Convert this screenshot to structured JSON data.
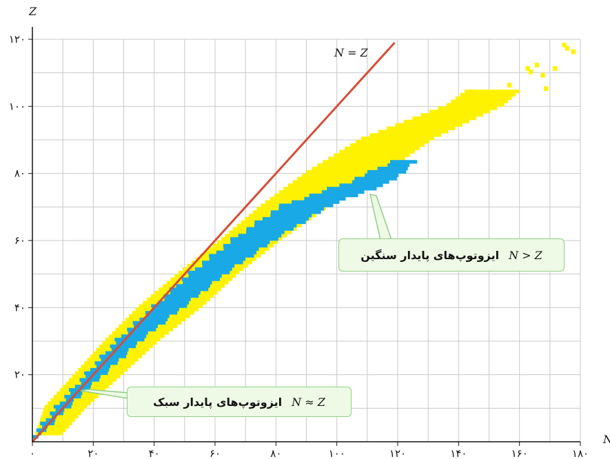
{
  "chart_data": {
    "type": "scatter",
    "title": "",
    "xlabel": "N",
    "ylabel": "Z",
    "xlim": [
      0,
      180
    ],
    "ylim": [
      0,
      120
    ],
    "x_ticks": [
      0,
      20,
      40,
      60,
      80,
      100,
      120,
      140,
      160,
      180
    ],
    "x_tick_labels": [
      "۰",
      "۲۰",
      "۴۰",
      "۶۰",
      "۸۰",
      "۱۰۰",
      "۱۲۰",
      "۱۴۰",
      "۱۶۰",
      "۱۸۰"
    ],
    "y_ticks": [
      20,
      40,
      60,
      80,
      100,
      120
    ],
    "y_tick_labels": [
      "۲۰",
      "۴۰",
      "۶۰",
      "۸۰",
      "۱۰۰",
      "۱۲۰"
    ],
    "grid": true,
    "reference_line": {
      "label": "N = Z",
      "x": [
        0,
        119
      ],
      "y": [
        0,
        119
      ],
      "color": "#d94b35"
    },
    "series": [
      {
        "color": "#fff200",
        "band": {
          "z": [
            2,
            10,
            20,
            30,
            40,
            50,
            60,
            70,
            80,
            90,
            100,
            104
          ],
          "n_min": [
            1,
            4,
            14,
            24,
            35,
            48,
            62,
            75,
            90,
            108,
            136,
            142
          ],
          "n_max": [
            10,
            18,
            30,
            42,
            56,
            68,
            82,
            98,
            116,
            132,
            155,
            160
          ]
        }
      },
      {
        "color": "#19a9e6",
        "band": {
          "z": [
            1,
            10,
            20,
            30,
            40,
            50,
            60,
            70,
            77,
            83
          ],
          "n_min": [
            0,
            8,
            18,
            28,
            40,
            52,
            66,
            82,
            104,
            118
          ],
          "n_max": [
            2,
            12,
            24,
            36,
            50,
            64,
            80,
            98,
            118,
            126
          ]
        }
      },
      {
        "color": "#fff200",
        "points": [
          [
            156,
            106
          ],
          [
            162,
            111
          ],
          [
            163,
            110
          ],
          [
            165,
            112
          ],
          [
            167,
            109
          ],
          [
            171,
            111
          ],
          [
            168,
            105
          ],
          [
            175,
            117
          ],
          [
            177,
            116
          ],
          [
            174,
            118
          ]
        ]
      }
    ],
    "annotations": [
      {
        "text": "ایزوتوپ‌های پایدار سبک",
        "relation": "N ≈ Z",
        "target": [
          18,
          18
        ]
      },
      {
        "text": "ایزوتوپ‌های پایدار سنگین",
        "relation": "N > Z",
        "target": [
          110,
          75
        ]
      }
    ]
  },
  "labels": {
    "eq": "N = Z",
    "light": "ایزوتوپ‌های پایدار سبک",
    "light_rel": "N ≈ Z",
    "heavy": "ایزوتوپ‌های پایدار سنگین",
    "heavy_rel": "N > Z"
  },
  "colors": {
    "axis": "#111111",
    "grid": "#c8c8c8",
    "line": "#d94b35",
    "yellow": "#fff200",
    "blue": "#19a9e6",
    "callout_border": "#8fcf7f"
  }
}
